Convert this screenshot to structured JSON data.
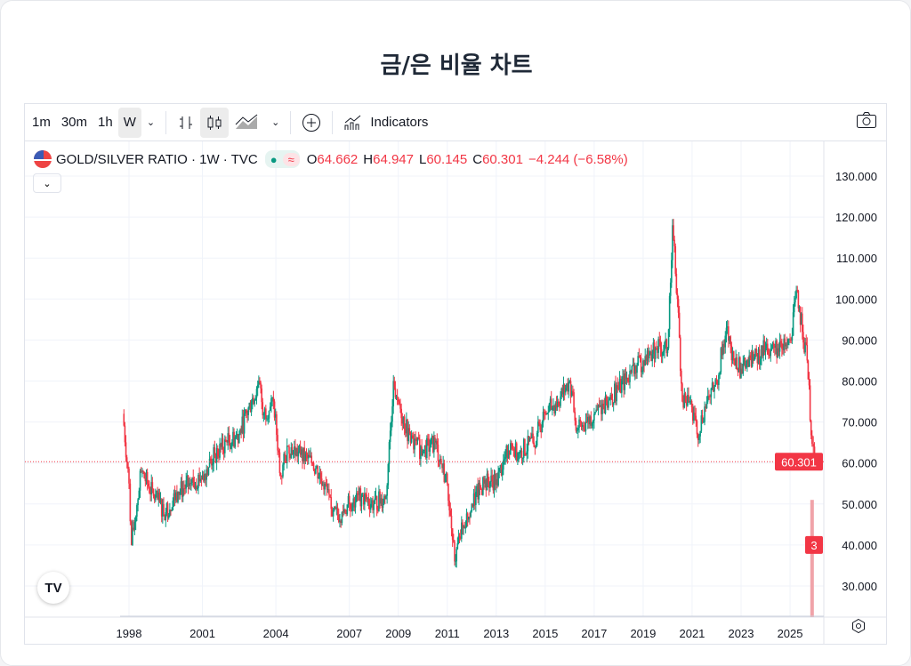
{
  "page": {
    "title": "금/은 비율 차트"
  },
  "toolbar": {
    "intervals": [
      "1m",
      "30m",
      "1h",
      "W"
    ],
    "active_interval": "W",
    "indicators_label": "Indicators"
  },
  "legend": {
    "symbol": "GOLD/SILVER RATIO · 1W · TVC",
    "open_label": "O",
    "open": "64.662",
    "high_label": "H",
    "high": "64.947",
    "low_label": "L",
    "low": "60.145",
    "close_label": "C",
    "close": "60.301",
    "change": "−4.244 (−6.58%)",
    "logo_text": "TV"
  },
  "colors": {
    "up": "#089981",
    "down": "#f23645",
    "volume": "#f0a3a9"
  },
  "chart_data": {
    "type": "candlestick",
    "symbol": "GOLD/SILVER RATIO",
    "interval": "1W",
    "ylim": [
      20,
      135
    ],
    "y_ticks": [
      "130.000",
      "120.000",
      "110.000",
      "100.000",
      "90.000",
      "80.000",
      "70.000",
      "60.000",
      "50.000",
      "40.000",
      "30.000"
    ],
    "x_ticks": [
      "1998",
      "2001",
      "2004",
      "2007",
      "2009",
      "2011",
      "2013",
      "2015",
      "2017",
      "2019",
      "2021",
      "2023",
      "2025"
    ],
    "last_price": "60.301",
    "volume_label": "3",
    "series": {
      "x": [
        1997.75,
        1998.0,
        1998.1,
        1998.5,
        1999.0,
        1999.5,
        2000,
        2000.5,
        2001,
        2001.5,
        2002,
        2002.5,
        2003,
        2003.3,
        2003.5,
        2003.9,
        2004.2,
        2004.5,
        2005,
        2005.5,
        2006,
        2006.3,
        2006.7,
        2007,
        2007.5,
        2008,
        2008.5,
        2008.8,
        2009,
        2009.5,
        2010,
        2010.5,
        2011,
        2011.3,
        2011.5,
        2012,
        2012.5,
        2013,
        2013.5,
        2014,
        2014.5,
        2015,
        2015.5,
        2016,
        2016.3,
        2016.7,
        2017,
        2017.5,
        2018,
        2018.5,
        2019,
        2019.5,
        2020,
        2020.2,
        2020.4,
        2020.6,
        2020.9,
        2021.2,
        2021.6,
        2022,
        2022.4,
        2022.7,
        2023,
        2023.5,
        2024,
        2024.5,
        2025,
        2025.3,
        2025.5,
        2025.7,
        2025.9,
        2026.0
      ],
      "close": [
        72,
        55,
        40,
        58,
        52,
        48,
        53,
        55,
        57,
        62,
        65,
        67,
        75,
        80,
        72,
        75,
        57,
        64,
        62,
        60,
        55,
        47,
        48,
        50,
        52,
        50,
        52,
        80,
        75,
        65,
        63,
        65,
        55,
        36,
        42,
        50,
        55,
        56,
        63,
        63,
        65,
        72,
        75,
        80,
        68,
        70,
        72,
        75,
        78,
        82,
        85,
        88,
        88,
        118,
        100,
        75,
        75,
        67,
        75,
        80,
        93,
        85,
        83,
        85,
        88,
        88,
        90,
        102,
        92,
        85,
        64.66,
        60.301
      ]
    }
  }
}
